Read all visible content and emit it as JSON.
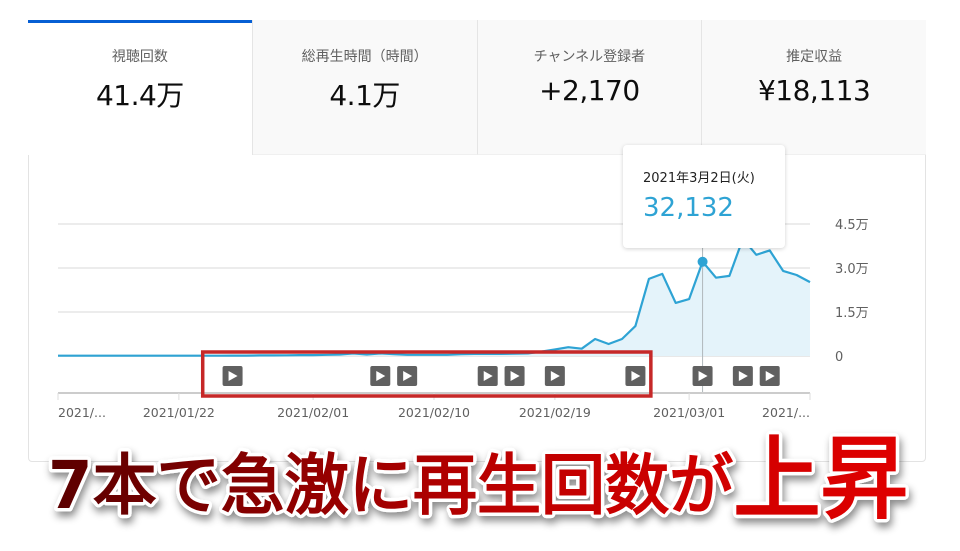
{
  "tabs": [
    {
      "label": "視聴回数",
      "value": "41.4万",
      "active": true
    },
    {
      "label": "総再生時間（時間）",
      "value": "4.1万",
      "active": false
    },
    {
      "label": "チャンネル登録者",
      "value": "+2,170",
      "active": false
    },
    {
      "label": "推定収益",
      "value": "¥18,113",
      "active": false
    }
  ],
  "tooltip": {
    "date": "2021年3月2日(火)",
    "value": "32,132"
  },
  "caption": {
    "part1": "7本で急激に再生回数が",
    "part2": "上昇"
  },
  "colors": {
    "accent": "#065fd4",
    "line": "#2ea3d4",
    "area": "#e4f3fa",
    "highlight_box": "#c62828",
    "caption_dark": "#5a0000",
    "caption_red": "#e00000"
  },
  "chart_data": {
    "type": "area",
    "title": "",
    "xlabel": "",
    "ylabel": "",
    "ylim": [
      0,
      45000
    ],
    "grid": true,
    "y_ticks": [
      {
        "value": 0,
        "label": "0"
      },
      {
        "value": 15000,
        "label": "1.5万"
      },
      {
        "value": 30000,
        "label": "3.0万"
      },
      {
        "value": 45000,
        "label": "4.5万"
      }
    ],
    "x_ticks": [
      {
        "date": "2021-01-13",
        "label": "2021/..."
      },
      {
        "date": "2021-01-22",
        "label": "2021/01/22"
      },
      {
        "date": "2021-02-01",
        "label": "2021/02/01"
      },
      {
        "date": "2021-02-10",
        "label": "2021/02/10"
      },
      {
        "date": "2021-02-19",
        "label": "2021/02/19"
      },
      {
        "date": "2021-03-01",
        "label": "2021/03/01"
      },
      {
        "date": "2021-03-10",
        "label": "2021/..."
      }
    ],
    "x": [
      "2021-01-13",
      "2021-01-14",
      "2021-01-15",
      "2021-01-16",
      "2021-01-17",
      "2021-01-18",
      "2021-01-19",
      "2021-01-20",
      "2021-01-21",
      "2021-01-22",
      "2021-01-23",
      "2021-01-24",
      "2021-01-25",
      "2021-01-26",
      "2021-01-27",
      "2021-01-28",
      "2021-01-29",
      "2021-01-30",
      "2021-01-31",
      "2021-02-01",
      "2021-02-02",
      "2021-02-03",
      "2021-02-04",
      "2021-02-05",
      "2021-02-06",
      "2021-02-07",
      "2021-02-08",
      "2021-02-09",
      "2021-02-10",
      "2021-02-11",
      "2021-02-12",
      "2021-02-13",
      "2021-02-14",
      "2021-02-15",
      "2021-02-16",
      "2021-02-17",
      "2021-02-18",
      "2021-02-19",
      "2021-02-20",
      "2021-02-21",
      "2021-02-22",
      "2021-02-23",
      "2021-02-24",
      "2021-02-25",
      "2021-02-26",
      "2021-02-27",
      "2021-02-28",
      "2021-03-01",
      "2021-03-02",
      "2021-03-03",
      "2021-03-04",
      "2021-03-05",
      "2021-03-06",
      "2021-03-07",
      "2021-03-08",
      "2021-03-09",
      "2021-03-10"
    ],
    "values": [
      100,
      100,
      100,
      100,
      100,
      100,
      100,
      100,
      100,
      100,
      100,
      100,
      100,
      150,
      150,
      200,
      200,
      250,
      300,
      300,
      400,
      500,
      900,
      500,
      900,
      600,
      400,
      400,
      400,
      400,
      600,
      700,
      700,
      700,
      800,
      900,
      1500,
      2200,
      3000,
      2500,
      5800,
      4100,
      5800,
      10200,
      26300,
      28000,
      18100,
      19400,
      32132,
      26700,
      27300,
      40000,
      34500,
      36000,
      29000,
      27600,
      25200
    ],
    "highlighted_point": {
      "date": "2021-03-02",
      "value": 32132
    },
    "video_publish_markers": [
      "2021-01-26",
      "2021-02-06",
      "2021-02-08",
      "2021-02-14",
      "2021-02-16",
      "2021-02-19",
      "2021-02-25",
      "2021-03-02",
      "2021-03-05",
      "2021-03-07"
    ],
    "highlight_range": [
      "2021-01-24",
      "2021-02-26"
    ]
  }
}
